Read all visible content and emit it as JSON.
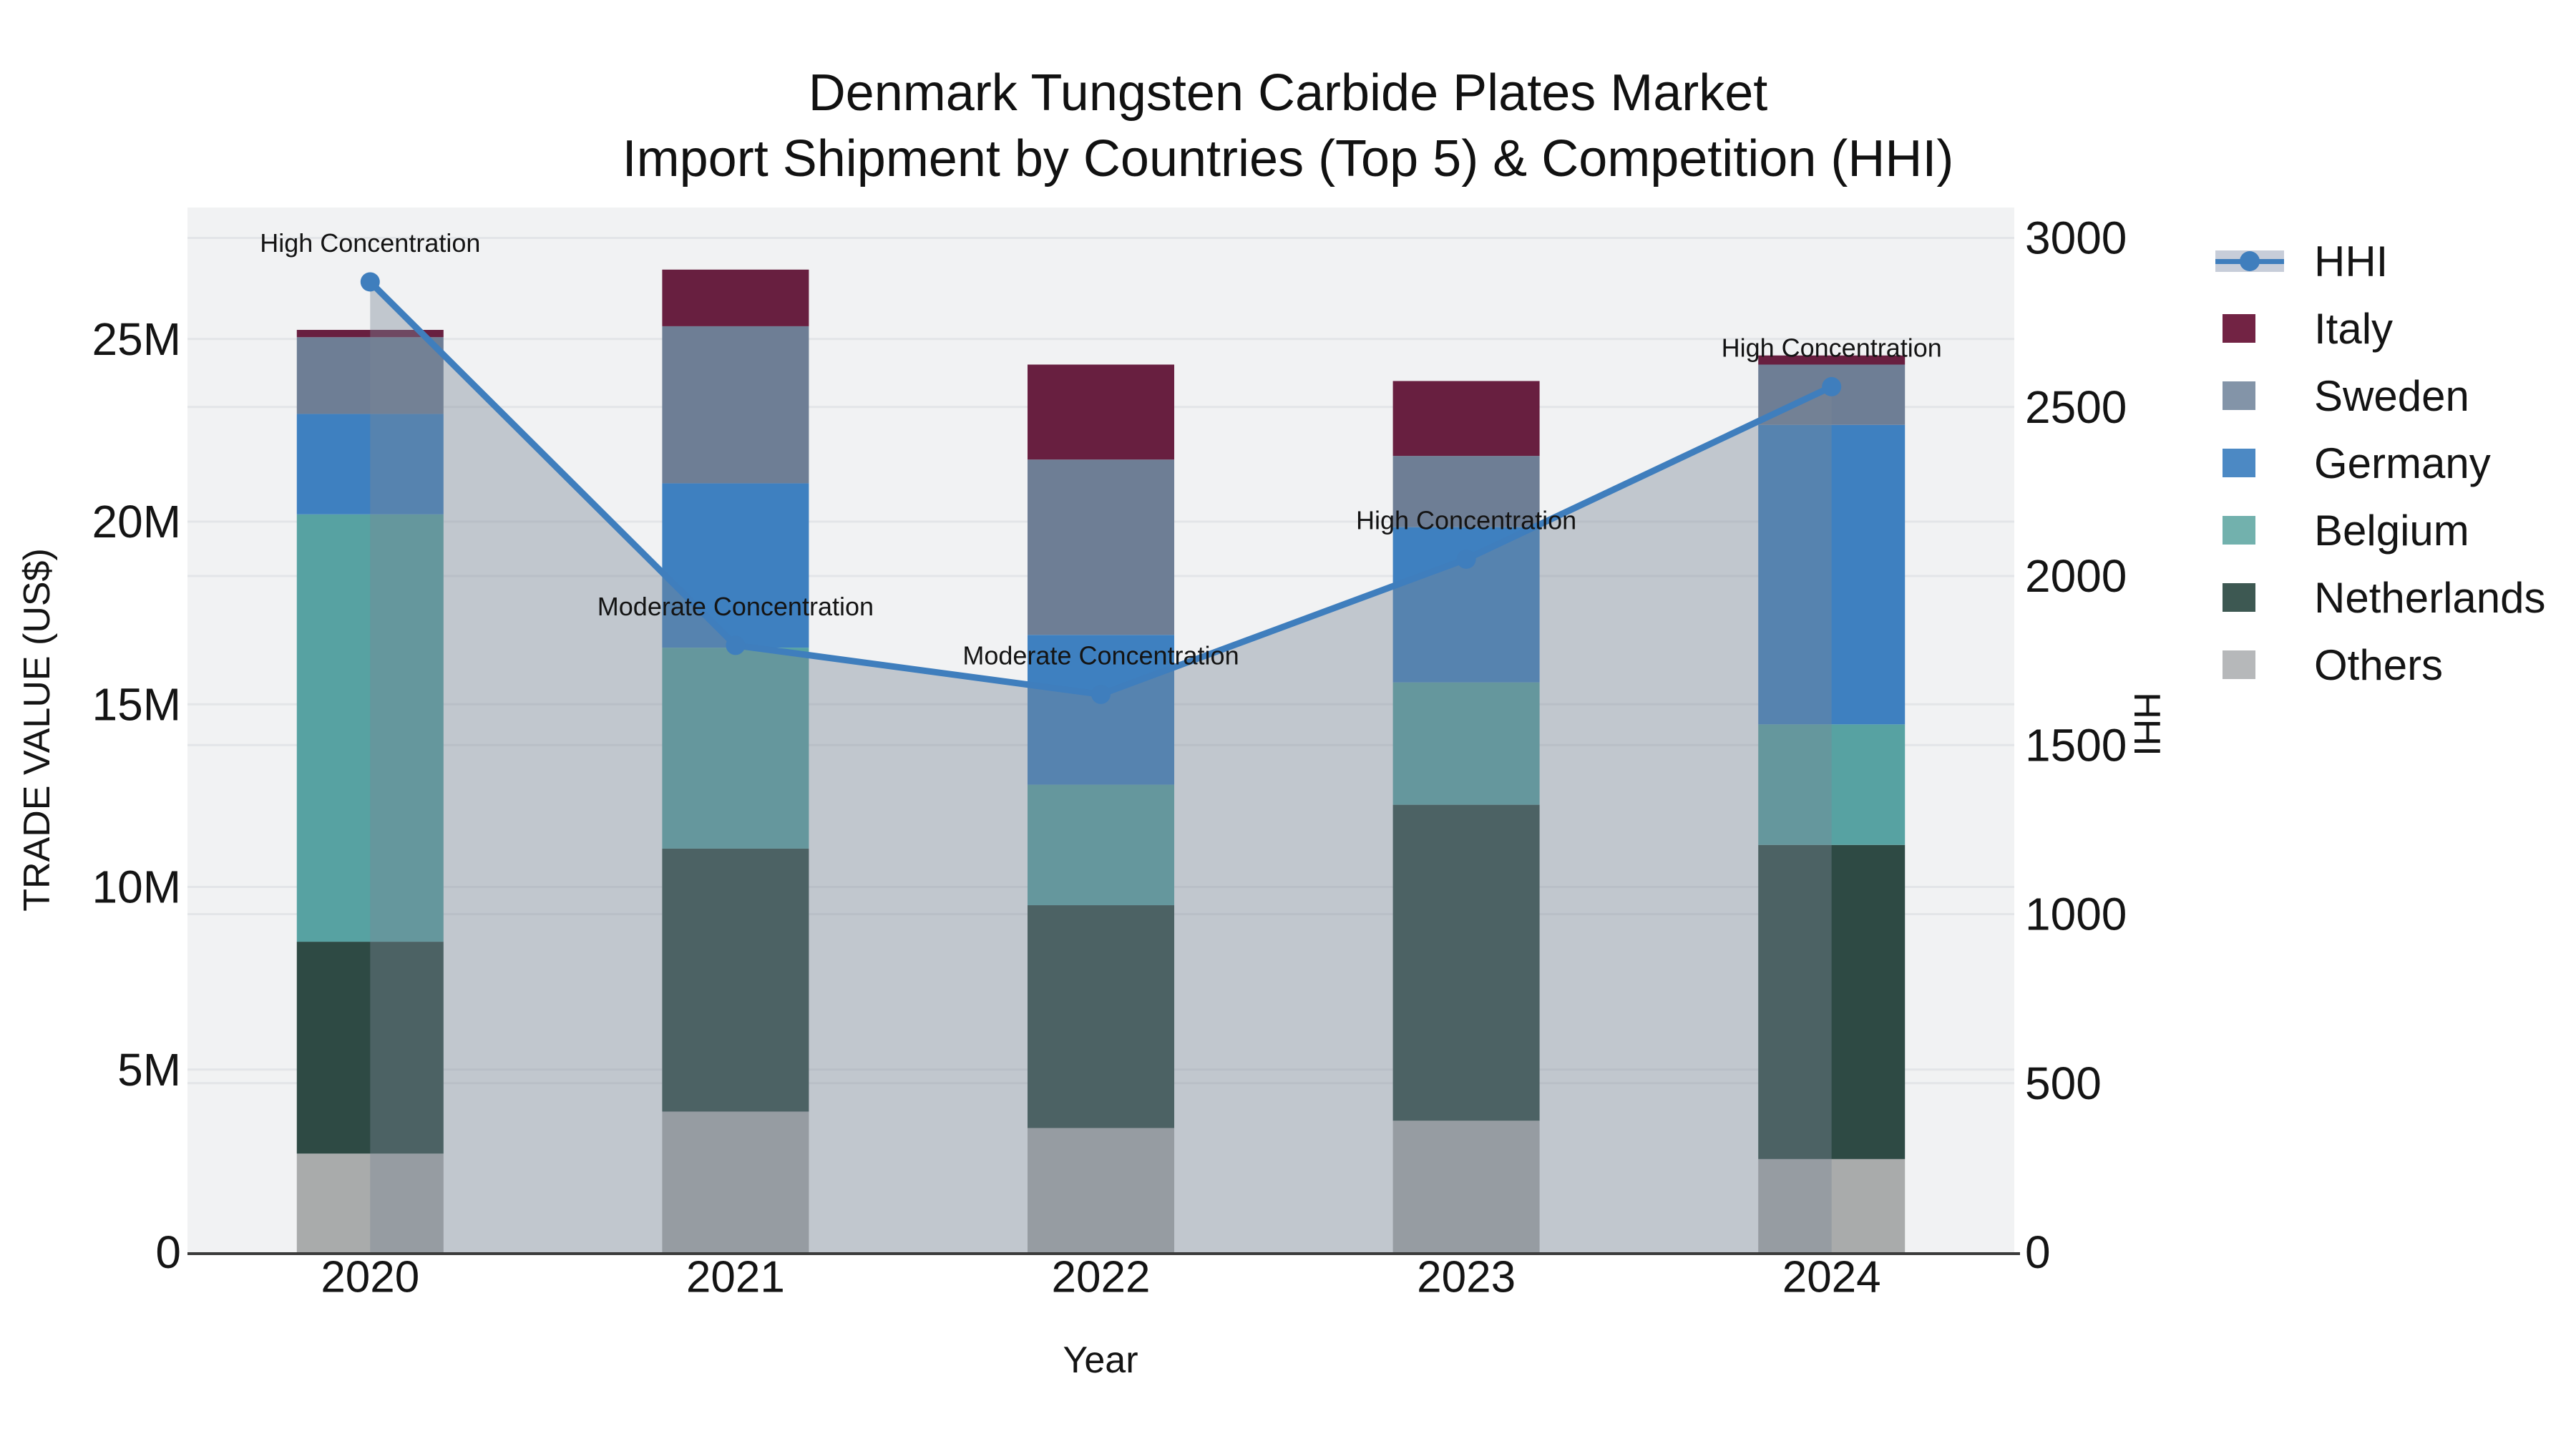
{
  "title": {
    "line1": "Denmark Tungsten Carbide Plates Market",
    "line2": "Import Shipment by Countries (Top 5) & Competition (HHI)"
  },
  "axes": {
    "x": {
      "title": "Year",
      "categories": [
        "2020",
        "2021",
        "2022",
        "2023",
        "2024"
      ]
    },
    "y_left": {
      "title": "TRADE VALUE (US$)",
      "tick_labels": [
        "0",
        "5M",
        "10M",
        "15M",
        "20M",
        "25M"
      ],
      "tick_values_musd": [
        0,
        5,
        10,
        15,
        20,
        25
      ],
      "range_musd": [
        0,
        28.6
      ]
    },
    "y_right": {
      "title": "HHI",
      "tick_values": [
        0,
        500,
        1000,
        1500,
        2000,
        2500,
        3000
      ],
      "range": [
        0,
        3090
      ]
    }
  },
  "chart_data": {
    "type": "combo_stacked_bar_line",
    "categories": [
      "2020",
      "2021",
      "2022",
      "2023",
      "2024"
    ],
    "bar_series": [
      {
        "name": "Others",
        "color": "#a9abab",
        "values_musd": [
          2.7,
          3.85,
          3.4,
          3.6,
          2.55
        ]
      },
      {
        "name": "Netherlands",
        "color": "#2e4a44",
        "values_musd": [
          5.8,
          7.2,
          6.1,
          8.65,
          8.6
        ]
      },
      {
        "name": "Belgium",
        "color": "#57a2a2",
        "values_musd": [
          11.7,
          5.5,
          3.3,
          3.35,
          3.3
        ]
      },
      {
        "name": "Germany",
        "color": "#3e80c0",
        "values_musd": [
          2.75,
          4.5,
          4.1,
          4.25,
          8.2
        ]
      },
      {
        "name": "Sweden",
        "color": "#6e7e95",
        "values_musd": [
          2.1,
          4.3,
          4.8,
          1.95,
          1.65
        ]
      },
      {
        "name": "Italy",
        "color": "#681f40",
        "values_musd": [
          0.2,
          1.55,
          2.6,
          2.05,
          0.25
        ]
      }
    ],
    "line_series": {
      "name": "HHI",
      "color": "#3f7ebd",
      "area_fill": "rgba(122,134,150,0.40)",
      "values": [
        2870,
        1795,
        1650,
        2050,
        2560
      ]
    },
    "annotations": [
      {
        "x": "2020",
        "label": "High Concentration"
      },
      {
        "x": "2021",
        "label": "Moderate Concentration"
      },
      {
        "x": "2022",
        "label": "Moderate Concentration"
      },
      {
        "x": "2023",
        "label": "High Concentration"
      },
      {
        "x": "2024",
        "label": "High Concentration"
      }
    ]
  },
  "legend": {
    "items": [
      {
        "label": "HHI",
        "type": "line",
        "color": "#3f7ebd",
        "band_color": "#c7cdd9"
      },
      {
        "label": "Italy",
        "type": "swatch",
        "color": "#722344"
      },
      {
        "label": "Sweden",
        "type": "swatch",
        "color": "#8394a8"
      },
      {
        "label": "Germany",
        "type": "swatch",
        "color": "#4c89c4"
      },
      {
        "label": "Belgium",
        "type": "swatch",
        "color": "#72b1ad"
      },
      {
        "label": "Netherlands",
        "type": "swatch",
        "color": "#3d5852"
      },
      {
        "label": "Others",
        "type": "swatch",
        "color": "#b6b8ba"
      }
    ]
  },
  "colors": {
    "plot_bg": "#f1f2f3",
    "grid": "#e3e5e8",
    "axis_line": "#3b3b3b",
    "text": "#141414"
  }
}
